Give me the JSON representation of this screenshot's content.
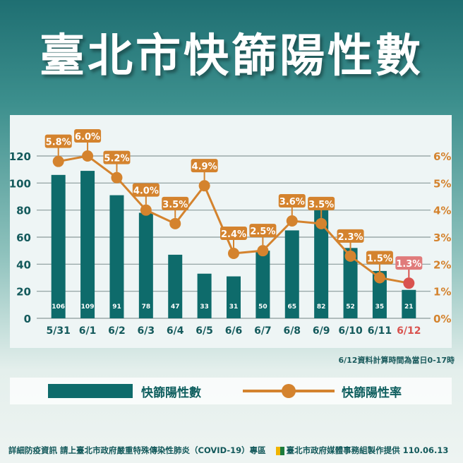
{
  "title": "臺北市快篩陽性數",
  "note": "6/12資料計算時間為當日0-17時",
  "legend": {
    "bar": "快篩陽性數",
    "line": "快篩陽性率"
  },
  "footer": {
    "left": "詳細防疫資訊 請上臺北市政府嚴重特殊傳染性肺炎（COVID-19）專區",
    "right": "臺北市政府媒體事務組製作提供 110.06.13"
  },
  "colors": {
    "bar": "#0e6b6b",
    "line": "#d4832e",
    "highlight": "#d9534f"
  },
  "chart_data": {
    "type": "bar+line",
    "categories": [
      "5/31",
      "6/1",
      "6/2",
      "6/3",
      "6/4",
      "6/5",
      "6/6",
      "6/7",
      "6/8",
      "6/9",
      "6/10",
      "6/11",
      "6/12"
    ],
    "series": [
      {
        "name": "快篩陽性數",
        "type": "bar",
        "axis": "left",
        "values": [
          106,
          109,
          91,
          78,
          47,
          33,
          31,
          50,
          65,
          82,
          52,
          35,
          21
        ]
      },
      {
        "name": "快篩陽性率",
        "type": "line",
        "axis": "right",
        "values": [
          5.8,
          6.0,
          5.2,
          4.0,
          3.5,
          4.9,
          2.4,
          2.5,
          3.6,
          3.5,
          2.3,
          1.5,
          1.3
        ],
        "unit": "%"
      }
    ],
    "yleft": {
      "range": [
        0,
        120
      ],
      "ticks": [
        "0",
        "20",
        "40",
        "60",
        "80",
        "100",
        "120"
      ]
    },
    "yright": {
      "range": [
        0,
        6
      ],
      "ticks": [
        "0%",
        "1%",
        "2%",
        "3%",
        "4%",
        "5%",
        "6%"
      ]
    },
    "grid": true,
    "highlight_last": true
  }
}
